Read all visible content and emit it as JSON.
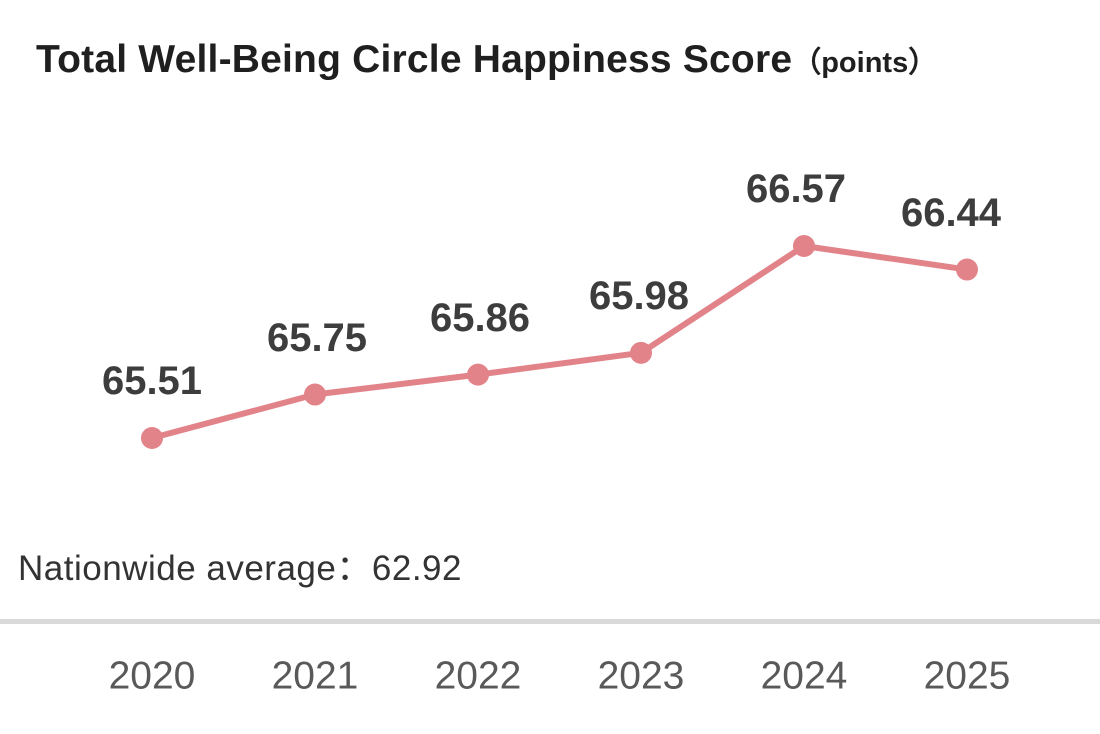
{
  "title": {
    "main": "Total Well-Being Circle Happiness Score",
    "unit": "（points）"
  },
  "annotation": {
    "label": "Nationwide average",
    "separator": "：",
    "value": "62.92"
  },
  "chart_data": {
    "type": "line",
    "title": "Total Well-Being Circle Happiness Score（points）",
    "categories": [
      "2020",
      "2021",
      "2022",
      "2023",
      "2024",
      "2025"
    ],
    "series": [
      {
        "name": "Total Well-Being Circle Happiness Score",
        "values": [
          65.51,
          65.75,
          65.86,
          65.98,
          66.57,
          66.44
        ]
      }
    ],
    "data_labels": [
      "65.51",
      "65.75",
      "65.86",
      "65.98",
      "66.57",
      "66.44"
    ],
    "annotation": "Nationwide average：62.92",
    "nationwide_average": 62.92,
    "xlabel": "",
    "ylabel": "",
    "ylim": [
      65.0,
      67.0
    ],
    "grid": false,
    "legend": "none",
    "line_color": "#e28389",
    "marker_color": "#e28389",
    "data_label_color": "#3d3d3d",
    "axis_label_color": "#595959",
    "divider_color": "#d9d9d9"
  }
}
